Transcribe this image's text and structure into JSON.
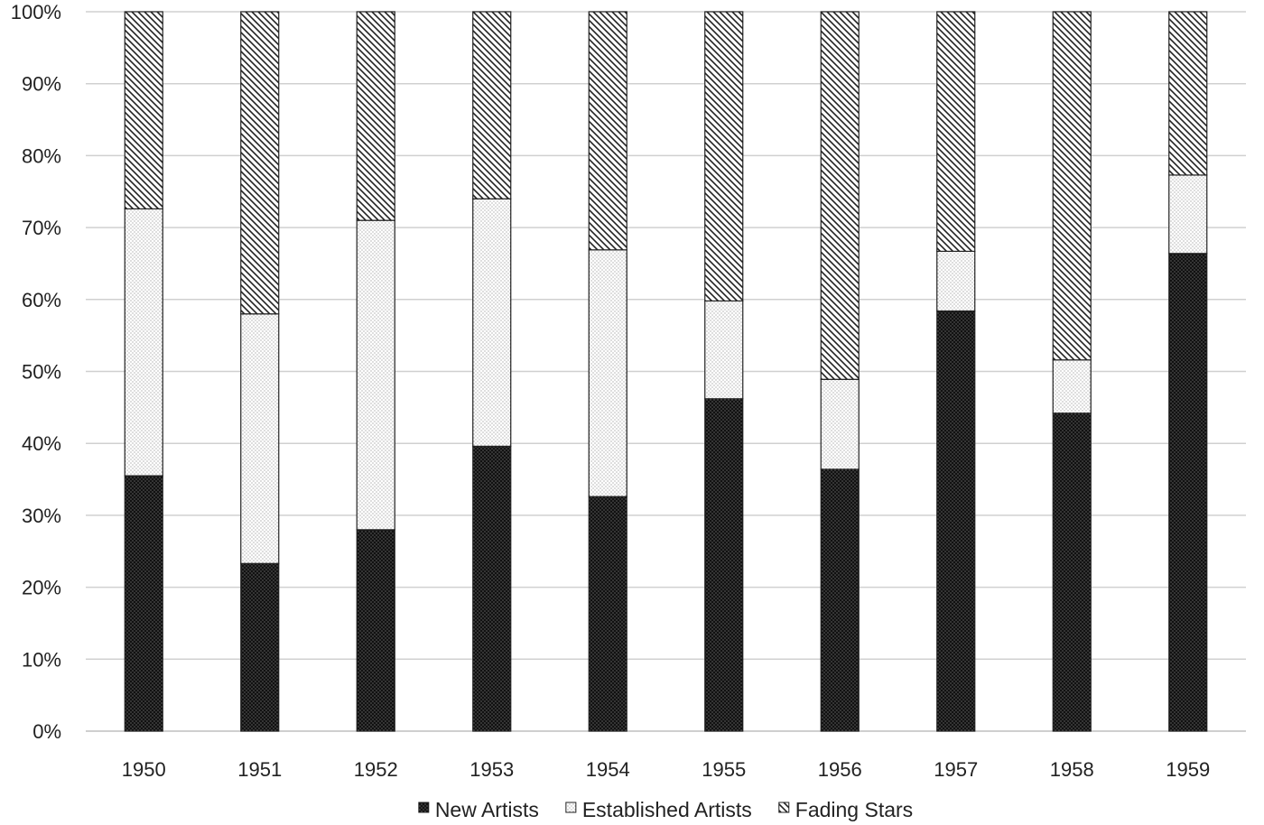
{
  "chart_data": {
    "type": "bar",
    "stacked": true,
    "normalized": true,
    "categories": [
      "1950",
      "1951",
      "1952",
      "1953",
      "1954",
      "1955",
      "1956",
      "1957",
      "1958",
      "1959"
    ],
    "series": [
      {
        "name": "New Artists",
        "pattern": "dark-dots",
        "values": [
          35.5,
          23.3,
          28.0,
          39.6,
          32.6,
          46.2,
          36.4,
          58.4,
          44.2,
          66.4
        ]
      },
      {
        "name": "Established Artists",
        "pattern": "light-dots",
        "values": [
          37.1,
          34.7,
          43.0,
          34.4,
          34.3,
          13.6,
          12.5,
          8.3,
          7.4,
          10.9
        ]
      },
      {
        "name": "Fading Stars",
        "pattern": "diagonal-hatch",
        "values": [
          27.4,
          42.0,
          29.0,
          26.0,
          33.1,
          40.2,
          51.1,
          33.3,
          48.4,
          22.7
        ]
      }
    ],
    "ylim": [
      0,
      100
    ],
    "yticks": [
      "0%",
      "10%",
      "20%",
      "30%",
      "40%",
      "50%",
      "60%",
      "70%",
      "80%",
      "90%",
      "100%"
    ],
    "grid": true,
    "legend_position": "bottom",
    "colors": {
      "grid": "#d0d0d0",
      "bar_outline": "#222222",
      "dark_fill": "#111111",
      "light_fill": "#ffffff"
    }
  }
}
